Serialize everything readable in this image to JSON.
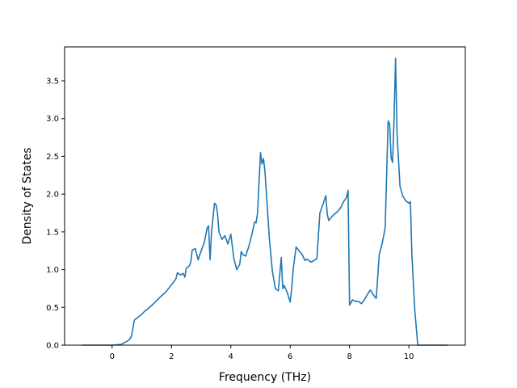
{
  "chart_data": {
    "type": "line",
    "title": "",
    "xlabel": "Frequency (THz)",
    "ylabel": "Density of States",
    "xlim": [
      -1.6,
      11.9
    ],
    "ylim": [
      0.0,
      3.95
    ],
    "xticks": [
      0,
      2,
      4,
      6,
      8,
      10
    ],
    "yticks": [
      0.0,
      0.5,
      1.0,
      1.5,
      2.0,
      2.5,
      3.0,
      3.5
    ],
    "xtick_labels": [
      "0",
      "2",
      "4",
      "6",
      "8",
      "10"
    ],
    "ytick_labels": [
      "0.0",
      "0.5",
      "1.0",
      "1.5",
      "2.0",
      "2.5",
      "3.0",
      "3.5"
    ],
    "grid": false,
    "legend": "none",
    "series": [
      {
        "color": "#1f77b4",
        "x": [
          -1.0,
          0.0,
          0.3,
          0.5,
          0.6,
          0.65,
          0.7,
          0.75,
          0.8,
          0.85,
          0.9,
          1.0,
          1.1,
          1.2,
          1.4,
          1.6,
          1.8,
          1.9,
          2.0,
          2.1,
          2.15,
          2.2,
          2.3,
          2.4,
          2.45,
          2.5,
          2.6,
          2.65,
          2.7,
          2.8,
          2.9,
          3.0,
          3.1,
          3.2,
          3.25,
          3.3,
          3.35,
          3.45,
          3.5,
          3.55,
          3.6,
          3.7,
          3.8,
          3.9,
          4.0,
          4.1,
          4.2,
          4.3,
          4.35,
          4.4,
          4.5,
          4.6,
          4.7,
          4.8,
          4.85,
          4.9,
          5.0,
          5.05,
          5.1,
          5.15,
          5.2,
          5.3,
          5.4,
          5.5,
          5.6,
          5.7,
          5.75,
          5.8,
          5.85,
          5.9,
          6.0,
          6.05,
          6.1,
          6.2,
          6.3,
          6.4,
          6.5,
          6.55,
          6.6,
          6.7,
          6.8,
          6.9,
          7.0,
          7.1,
          7.2,
          7.25,
          7.3,
          7.4,
          7.5,
          7.6,
          7.7,
          7.8,
          7.9,
          7.95,
          8.0,
          8.1,
          8.2,
          8.3,
          8.4,
          8.5,
          8.6,
          8.65,
          8.7,
          8.8,
          8.85,
          8.9,
          9.0,
          9.1,
          9.2,
          9.3,
          9.35,
          9.4,
          9.45,
          9.5,
          9.55,
          9.6,
          9.7,
          9.8,
          9.9,
          10.0,
          10.05,
          10.1,
          10.2,
          10.3,
          10.35,
          10.5,
          11.3
        ],
        "values": [
          0.0,
          0.0,
          0.01,
          0.05,
          0.08,
          0.12,
          0.22,
          0.33,
          0.35,
          0.36,
          0.38,
          0.41,
          0.45,
          0.48,
          0.55,
          0.63,
          0.7,
          0.75,
          0.8,
          0.85,
          0.88,
          0.96,
          0.93,
          0.95,
          0.9,
          1.02,
          1.05,
          1.1,
          1.26,
          1.28,
          1.13,
          1.25,
          1.35,
          1.55,
          1.58,
          1.13,
          1.5,
          1.88,
          1.86,
          1.75,
          1.5,
          1.4,
          1.45,
          1.34,
          1.47,
          1.15,
          1.0,
          1.07,
          1.24,
          1.2,
          1.18,
          1.3,
          1.45,
          1.63,
          1.62,
          1.75,
          2.55,
          2.4,
          2.47,
          2.3,
          2.0,
          1.4,
          0.98,
          0.75,
          0.72,
          1.16,
          0.75,
          0.79,
          0.74,
          0.7,
          0.57,
          0.75,
          1.0,
          1.3,
          1.25,
          1.2,
          1.12,
          1.14,
          1.13,
          1.1,
          1.12,
          1.15,
          1.75,
          1.86,
          1.98,
          1.73,
          1.65,
          1.7,
          1.74,
          1.77,
          1.82,
          1.9,
          1.96,
          2.05,
          0.53,
          0.6,
          0.58,
          0.58,
          0.55,
          0.6,
          0.67,
          0.7,
          0.73,
          0.67,
          0.64,
          0.62,
          1.2,
          1.35,
          1.55,
          2.97,
          2.93,
          2.48,
          2.42,
          3.0,
          3.8,
          2.8,
          2.1,
          1.97,
          1.91,
          1.88,
          1.9,
          1.2,
          0.45,
          0.0,
          0.0,
          0.0,
          0.0
        ]
      }
    ]
  }
}
